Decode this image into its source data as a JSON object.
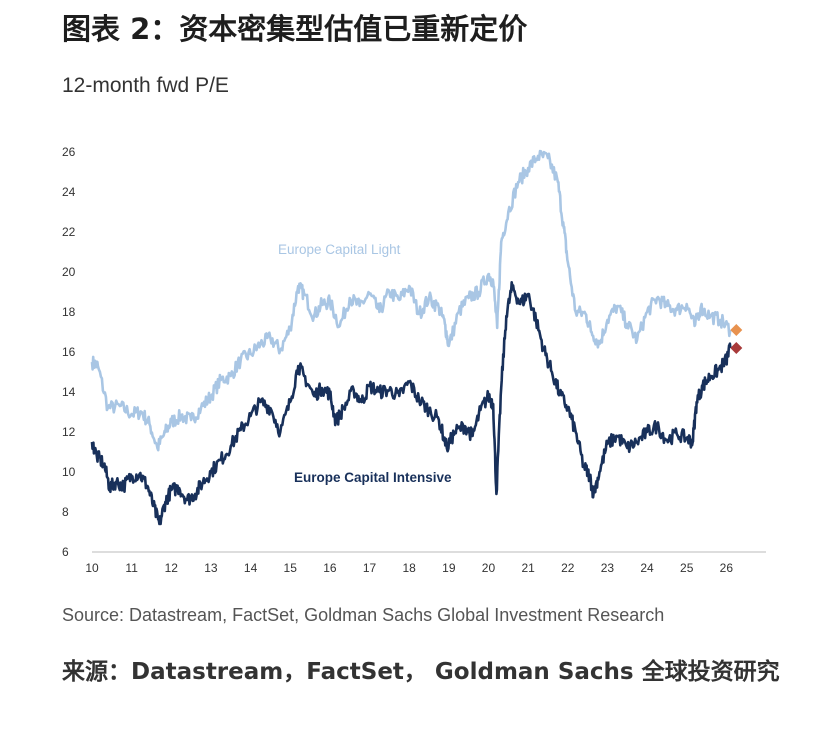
{
  "page": {
    "title": "图表 2：资本密集型估值已重新定价",
    "source_en": "Source: Datastream, FactSet, Goldman Sachs Global Investment Research",
    "source_cn": "来源：Datastream，FactSet， Goldman Sachs 全球投资研究"
  },
  "chart_data": {
    "type": "line",
    "title": "",
    "subtitle": "12-month fwd P/E",
    "xlabel": "",
    "ylabel": "",
    "xlim": [
      2010,
      2027
    ],
    "ylim": [
      6,
      26
    ],
    "x_ticks": [
      10,
      11,
      12,
      13,
      14,
      15,
      16,
      17,
      18,
      19,
      20,
      21,
      22,
      23,
      24,
      25,
      26
    ],
    "y_ticks": [
      6,
      8,
      10,
      12,
      14,
      16,
      18,
      20,
      22,
      24,
      26
    ],
    "grid": false,
    "legend": "inline labels",
    "series": [
      {
        "name": "Europe Capital Light",
        "color": "#a9c6e4",
        "points": [
          [
            2010.0,
            15.5
          ],
          [
            2010.15,
            15.3
          ],
          [
            2010.4,
            13.2
          ],
          [
            2010.7,
            13.3
          ],
          [
            2011.0,
            12.9
          ],
          [
            2011.25,
            13.0
          ],
          [
            2011.45,
            12.4
          ],
          [
            2011.65,
            11.2
          ],
          [
            2011.85,
            12.0
          ],
          [
            2012.0,
            12.5
          ],
          [
            2012.25,
            12.8
          ],
          [
            2012.5,
            12.6
          ],
          [
            2012.75,
            13.2
          ],
          [
            2013.0,
            13.8
          ],
          [
            2013.25,
            14.6
          ],
          [
            2013.5,
            14.8
          ],
          [
            2013.75,
            15.6
          ],
          [
            2014.0,
            15.9
          ],
          [
            2014.25,
            16.4
          ],
          [
            2014.5,
            16.7
          ],
          [
            2014.75,
            16.1
          ],
          [
            2015.0,
            17.2
          ],
          [
            2015.2,
            19.3
          ],
          [
            2015.35,
            18.9
          ],
          [
            2015.6,
            17.8
          ],
          [
            2015.8,
            18.4
          ],
          [
            2016.0,
            18.5
          ],
          [
            2016.25,
            17.3
          ],
          [
            2016.5,
            18.7
          ],
          [
            2016.75,
            18.3
          ],
          [
            2017.0,
            18.9
          ],
          [
            2017.25,
            18.0
          ],
          [
            2017.5,
            19.0
          ],
          [
            2017.75,
            18.6
          ],
          [
            2018.0,
            19.3
          ],
          [
            2018.25,
            17.9
          ],
          [
            2018.5,
            18.7
          ],
          [
            2018.75,
            18.2
          ],
          [
            2018.9,
            17.4
          ],
          [
            2019.0,
            16.3
          ],
          [
            2019.25,
            18.0
          ],
          [
            2019.5,
            18.7
          ],
          [
            2019.75,
            19.0
          ],
          [
            2020.0,
            19.9
          ],
          [
            2020.12,
            19.5
          ],
          [
            2020.22,
            17.2
          ],
          [
            2020.32,
            21.5
          ],
          [
            2020.5,
            23.0
          ],
          [
            2020.75,
            24.5
          ],
          [
            2021.0,
            25.2
          ],
          [
            2021.25,
            25.8
          ],
          [
            2021.5,
            25.7
          ],
          [
            2021.75,
            24.5
          ],
          [
            2021.9,
            22.2
          ],
          [
            2022.0,
            20.5
          ],
          [
            2022.2,
            18.0
          ],
          [
            2022.45,
            17.9
          ],
          [
            2022.6,
            17.0
          ],
          [
            2022.8,
            16.4
          ],
          [
            2023.0,
            17.6
          ],
          [
            2023.25,
            18.3
          ],
          [
            2023.5,
            17.4
          ],
          [
            2023.75,
            16.6
          ],
          [
            2024.0,
            18.0
          ],
          [
            2024.25,
            18.7
          ],
          [
            2024.5,
            18.3
          ],
          [
            2024.75,
            18.1
          ],
          [
            2025.0,
            18.4
          ],
          [
            2025.2,
            17.3
          ],
          [
            2025.35,
            18.2
          ],
          [
            2025.6,
            17.8
          ],
          [
            2025.85,
            17.6
          ],
          [
            2026.1,
            17.1
          ]
        ],
        "end_value": 17.1,
        "end_marker_color": "#e8924f",
        "label": "Europe Capital Light"
      },
      {
        "name": "Europe Capital Intensive",
        "color": "#18305a",
        "points": [
          [
            2010.0,
            11.5
          ],
          [
            2010.12,
            10.8
          ],
          [
            2010.3,
            10.4
          ],
          [
            2010.45,
            9.2
          ],
          [
            2010.6,
            9.5
          ],
          [
            2010.8,
            9.3
          ],
          [
            2011.0,
            9.8
          ],
          [
            2011.2,
            9.9
          ],
          [
            2011.4,
            9.3
          ],
          [
            2011.55,
            8.3
          ],
          [
            2011.7,
            7.4
          ],
          [
            2011.85,
            8.5
          ],
          [
            2012.0,
            9.1
          ],
          [
            2012.2,
            9.2
          ],
          [
            2012.4,
            8.6
          ],
          [
            2012.6,
            8.9
          ],
          [
            2012.8,
            9.5
          ],
          [
            2013.0,
            10.0
          ],
          [
            2013.25,
            10.6
          ],
          [
            2013.5,
            11.3
          ],
          [
            2013.75,
            12.1
          ],
          [
            2014.0,
            12.8
          ],
          [
            2014.25,
            13.5
          ],
          [
            2014.5,
            13.2
          ],
          [
            2014.75,
            12.0
          ],
          [
            2015.0,
            13.5
          ],
          [
            2015.2,
            15.3
          ],
          [
            2015.35,
            14.8
          ],
          [
            2015.6,
            13.8
          ],
          [
            2015.8,
            14.2
          ],
          [
            2016.0,
            13.9
          ],
          [
            2016.15,
            12.5
          ],
          [
            2016.35,
            13.2
          ],
          [
            2016.6,
            14.1
          ],
          [
            2016.8,
            13.5
          ],
          [
            2017.0,
            14.3
          ],
          [
            2017.25,
            14.0
          ],
          [
            2017.5,
            14.1
          ],
          [
            2017.75,
            13.8
          ],
          [
            2018.0,
            14.5
          ],
          [
            2018.25,
            13.6
          ],
          [
            2018.5,
            13.1
          ],
          [
            2018.75,
            12.6
          ],
          [
            2018.95,
            11.2
          ],
          [
            2019.15,
            12.0
          ],
          [
            2019.4,
            12.3
          ],
          [
            2019.6,
            11.8
          ],
          [
            2019.8,
            13.1
          ],
          [
            2020.0,
            13.8
          ],
          [
            2020.12,
            13.4
          ],
          [
            2020.2,
            8.9
          ],
          [
            2020.32,
            14.2
          ],
          [
            2020.45,
            17.8
          ],
          [
            2020.6,
            19.3
          ],
          [
            2020.8,
            18.4
          ],
          [
            2021.0,
            18.9
          ],
          [
            2021.2,
            17.6
          ],
          [
            2021.4,
            16.1
          ],
          [
            2021.6,
            15.0
          ],
          [
            2021.8,
            13.9
          ],
          [
            2022.0,
            13.2
          ],
          [
            2022.2,
            12.0
          ],
          [
            2022.4,
            10.3
          ],
          [
            2022.55,
            9.8
          ],
          [
            2022.65,
            8.9
          ],
          [
            2022.8,
            10.0
          ],
          [
            2023.0,
            11.4
          ],
          [
            2023.25,
            11.8
          ],
          [
            2023.5,
            11.2
          ],
          [
            2023.75,
            11.5
          ],
          [
            2024.0,
            12.0
          ],
          [
            2024.25,
            12.3
          ],
          [
            2024.5,
            11.6
          ],
          [
            2024.75,
            11.9
          ],
          [
            2025.0,
            11.7
          ],
          [
            2025.15,
            11.5
          ],
          [
            2025.25,
            13.5
          ],
          [
            2025.4,
            14.3
          ],
          [
            2025.6,
            14.8
          ],
          [
            2025.8,
            15.1
          ],
          [
            2026.0,
            15.6
          ],
          [
            2026.1,
            16.2
          ]
        ],
        "end_value": 16.2,
        "end_marker_color": "#a83a3a",
        "label": "Europe Capital Intensive"
      }
    ]
  }
}
